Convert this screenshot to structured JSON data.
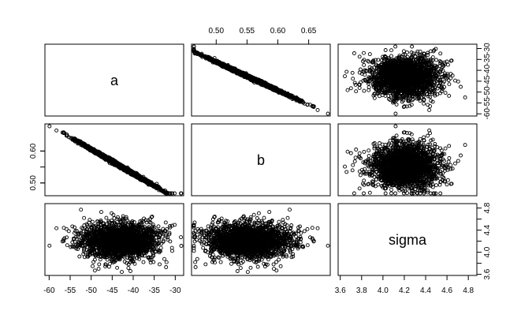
{
  "chart_data": {
    "type": "scatter",
    "variables": [
      "a",
      "b",
      "sigma"
    ],
    "ranges": {
      "a": [
        -61,
        -28
      ],
      "b": [
        0.46,
        0.685
      ],
      "sigma": [
        3.58,
        4.88
      ]
    },
    "ticks": {
      "a": [
        "-60",
        "-55",
        "-50",
        "-45",
        "-40",
        "-35",
        "-30"
      ],
      "b": [
        "0.50",
        "0.55",
        "0.60",
        "0.65"
      ],
      "b_left": [
        "0.50",
        "0.60"
      ],
      "sigma": [
        "3.6",
        "3.8",
        "4.0",
        "4.2",
        "4.4",
        "4.6",
        "4.8"
      ],
      "sigma_right": [
        "3.6",
        "4.0",
        "4.4",
        "4.8"
      ]
    },
    "distributions": {
      "a": {
        "mean": -43,
        "sd": 4.5
      },
      "sigma": {
        "mean": 4.2,
        "sd": 0.16
      },
      "b_given_a": {
        "intercept": 0.2245,
        "slope": -0.00762,
        "noise_sd": 0.0025
      },
      "n_points": 2200
    },
    "grid": false,
    "legend": "none"
  }
}
